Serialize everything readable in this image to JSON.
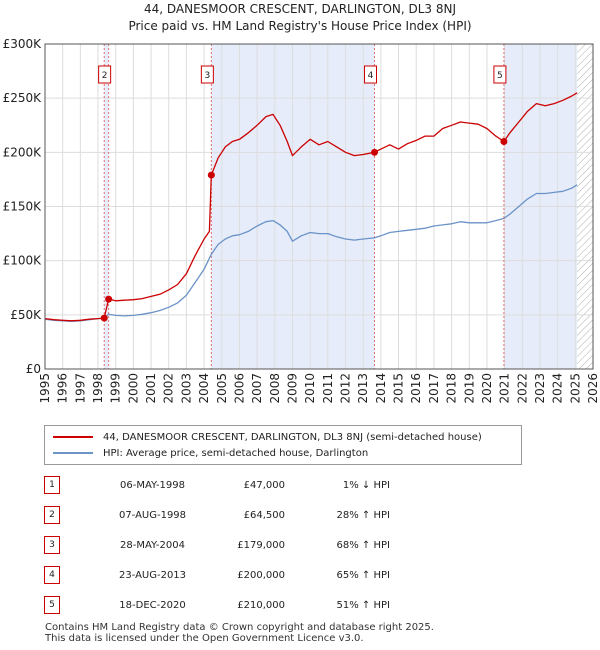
{
  "header": {
    "title_line1": "44, DANESMOOR CRESCENT, DARLINGTON, DL3 8NJ",
    "title_line2": "Price paid vs. HM Land Registry's House Price Index (HPI)"
  },
  "chart_data": {
    "type": "line",
    "x_range": [
      1995,
      2026
    ],
    "ylim": [
      0,
      300000
    ],
    "y_ticks": [
      {
        "value": 0,
        "label": "£0"
      },
      {
        "value": 50000,
        "label": "£50K"
      },
      {
        "value": 100000,
        "label": "£100K"
      },
      {
        "value": 150000,
        "label": "£150K"
      },
      {
        "value": 200000,
        "label": "£200K"
      },
      {
        "value": 250000,
        "label": "£250K"
      },
      {
        "value": 300000,
        "label": "£300K"
      }
    ],
    "x_ticks": [
      1995,
      1996,
      1997,
      1998,
      1999,
      2000,
      2001,
      2002,
      2003,
      2004,
      2005,
      2006,
      2007,
      2008,
      2009,
      2010,
      2011,
      2012,
      2013,
      2014,
      2015,
      2016,
      2017,
      2018,
      2019,
      2020,
      2021,
      2022,
      2023,
      2024,
      2025,
      2026
    ],
    "shaded_periods": [
      [
        1998.35,
        1998.6
      ],
      [
        2004.41,
        2013.64
      ],
      [
        2020.96,
        2025.1
      ]
    ],
    "hatched_from": 2025.1,
    "colors": {
      "property": "#cc0000",
      "hpi": "#6a93c8",
      "shade": "#e6ecfa",
      "grid": "#dddddd",
      "marker_line": "#e07070"
    },
    "series": [
      {
        "name": "44, DANESMOOR CRESCENT, DARLINGTON, DL3 8NJ (semi-detached house)",
        "points": [
          [
            1995,
            46500
          ],
          [
            1995.5,
            45500
          ],
          [
            1996,
            45000
          ],
          [
            1996.5,
            44500
          ],
          [
            1997,
            45000
          ],
          [
            1997.5,
            46000
          ],
          [
            1998,
            46500
          ],
          [
            1998.35,
            47000
          ],
          [
            1998.6,
            64500
          ],
          [
            1999,
            63000
          ],
          [
            1999.5,
            63500
          ],
          [
            2000,
            64000
          ],
          [
            2000.5,
            65000
          ],
          [
            2001,
            67000
          ],
          [
            2001.5,
            69000
          ],
          [
            2002,
            73000
          ],
          [
            2002.5,
            78000
          ],
          [
            2003,
            88000
          ],
          [
            2003.5,
            105000
          ],
          [
            2004,
            120000
          ],
          [
            2004.3,
            127000
          ],
          [
            2004.41,
            179000
          ],
          [
            2004.8,
            195000
          ],
          [
            2005.2,
            205000
          ],
          [
            2005.6,
            210000
          ],
          [
            2006,
            212000
          ],
          [
            2006.5,
            218000
          ],
          [
            2007,
            225000
          ],
          [
            2007.5,
            233000
          ],
          [
            2007.9,
            235000
          ],
          [
            2008.3,
            225000
          ],
          [
            2008.7,
            210000
          ],
          [
            2009,
            197000
          ],
          [
            2009.5,
            205000
          ],
          [
            2010,
            212000
          ],
          [
            2010.5,
            207000
          ],
          [
            2011,
            210000
          ],
          [
            2011.5,
            205000
          ],
          [
            2012,
            200000
          ],
          [
            2012.5,
            197000
          ],
          [
            2013,
            198000
          ],
          [
            2013.64,
            200000
          ],
          [
            2014,
            203000
          ],
          [
            2014.5,
            207000
          ],
          [
            2015,
            203000
          ],
          [
            2015.5,
            208000
          ],
          [
            2016,
            211000
          ],
          [
            2016.5,
            215000
          ],
          [
            2017,
            215000
          ],
          [
            2017.5,
            222000
          ],
          [
            2018,
            225000
          ],
          [
            2018.5,
            228000
          ],
          [
            2019,
            227000
          ],
          [
            2019.5,
            226000
          ],
          [
            2020,
            222000
          ],
          [
            2020.5,
            215000
          ],
          [
            2020.96,
            210000
          ],
          [
            2021.3,
            218000
          ],
          [
            2021.8,
            228000
          ],
          [
            2022.3,
            238000
          ],
          [
            2022.8,
            245000
          ],
          [
            2023.3,
            243000
          ],
          [
            2023.8,
            245000
          ],
          [
            2024.3,
            248000
          ],
          [
            2024.8,
            252000
          ],
          [
            2025.1,
            255000
          ]
        ]
      },
      {
        "name": "HPI: Average price, semi-detached house, Darlington",
        "points": [
          [
            1995,
            46000
          ],
          [
            1995.5,
            45000
          ],
          [
            1996,
            44500
          ],
          [
            1996.5,
            44000
          ],
          [
            1997,
            44500
          ],
          [
            1997.5,
            45500
          ],
          [
            1998,
            46500
          ],
          [
            1998.35,
            47000
          ],
          [
            1998.6,
            50500
          ],
          [
            1999,
            49500
          ],
          [
            1999.5,
            49000
          ],
          [
            2000,
            49500
          ],
          [
            2000.5,
            50500
          ],
          [
            2001,
            52000
          ],
          [
            2001.5,
            54000
          ],
          [
            2002,
            57000
          ],
          [
            2002.5,
            61000
          ],
          [
            2003,
            68000
          ],
          [
            2003.5,
            80000
          ],
          [
            2004,
            92000
          ],
          [
            2004.41,
            106000
          ],
          [
            2004.8,
            115000
          ],
          [
            2005.2,
            120000
          ],
          [
            2005.6,
            123000
          ],
          [
            2006,
            124000
          ],
          [
            2006.5,
            127000
          ],
          [
            2007,
            132000
          ],
          [
            2007.5,
            136000
          ],
          [
            2007.9,
            137000
          ],
          [
            2008.3,
            133000
          ],
          [
            2008.7,
            127000
          ],
          [
            2009,
            118000
          ],
          [
            2009.5,
            123000
          ],
          [
            2010,
            126000
          ],
          [
            2010.5,
            125000
          ],
          [
            2011,
            125000
          ],
          [
            2011.5,
            122000
          ],
          [
            2012,
            120000
          ],
          [
            2012.5,
            119000
          ],
          [
            2013,
            120000
          ],
          [
            2013.64,
            121000
          ],
          [
            2014,
            123000
          ],
          [
            2014.5,
            126000
          ],
          [
            2015,
            127000
          ],
          [
            2015.5,
            128000
          ],
          [
            2016,
            129000
          ],
          [
            2016.5,
            130000
          ],
          [
            2017,
            132000
          ],
          [
            2017.5,
            133000
          ],
          [
            2018,
            134000
          ],
          [
            2018.5,
            136000
          ],
          [
            2019,
            135000
          ],
          [
            2019.5,
            135000
          ],
          [
            2020,
            135000
          ],
          [
            2020.5,
            137000
          ],
          [
            2020.96,
            139000
          ],
          [
            2021.3,
            143000
          ],
          [
            2021.8,
            150000
          ],
          [
            2022.3,
            157000
          ],
          [
            2022.8,
            162000
          ],
          [
            2023.3,
            162000
          ],
          [
            2023.8,
            163000
          ],
          [
            2024.3,
            164000
          ],
          [
            2024.8,
            167000
          ],
          [
            2025.1,
            170000
          ]
        ]
      }
    ],
    "sales": [
      {
        "n": "1",
        "x": 1998.35,
        "price": 47000
      },
      {
        "n": "2",
        "x": 1998.6,
        "price": 64500
      },
      {
        "n": "3",
        "x": 2004.41,
        "price": 179000
      },
      {
        "n": "4",
        "x": 2013.64,
        "price": 200000
      },
      {
        "n": "5",
        "x": 2020.96,
        "price": 210000
      }
    ],
    "labeled_markers": [
      "2",
      "3",
      "4",
      "5"
    ]
  },
  "legend": {
    "property_label": "44, DANESMOOR CRESCENT, DARLINGTON, DL3 8NJ (semi-detached house)",
    "hpi_label": "HPI: Average price, semi-detached house, Darlington"
  },
  "transactions": [
    {
      "n": "1",
      "date": "06-MAY-1998",
      "price": "£47,000",
      "hpi": "1% ↓ HPI"
    },
    {
      "n": "2",
      "date": "07-AUG-1998",
      "price": "£64,500",
      "hpi": "28% ↑ HPI"
    },
    {
      "n": "3",
      "date": "28-MAY-2004",
      "price": "£179,000",
      "hpi": "68% ↑ HPI"
    },
    {
      "n": "4",
      "date": "23-AUG-2013",
      "price": "£200,000",
      "hpi": "65% ↑ HPI"
    },
    {
      "n": "5",
      "date": "18-DEC-2020",
      "price": "£210,000",
      "hpi": "51% ↑ HPI"
    }
  ],
  "footer": {
    "line1": "Contains HM Land Registry data © Crown copyright and database right 2025.",
    "line2": "This data is licensed under the Open Government Licence v3.0."
  }
}
